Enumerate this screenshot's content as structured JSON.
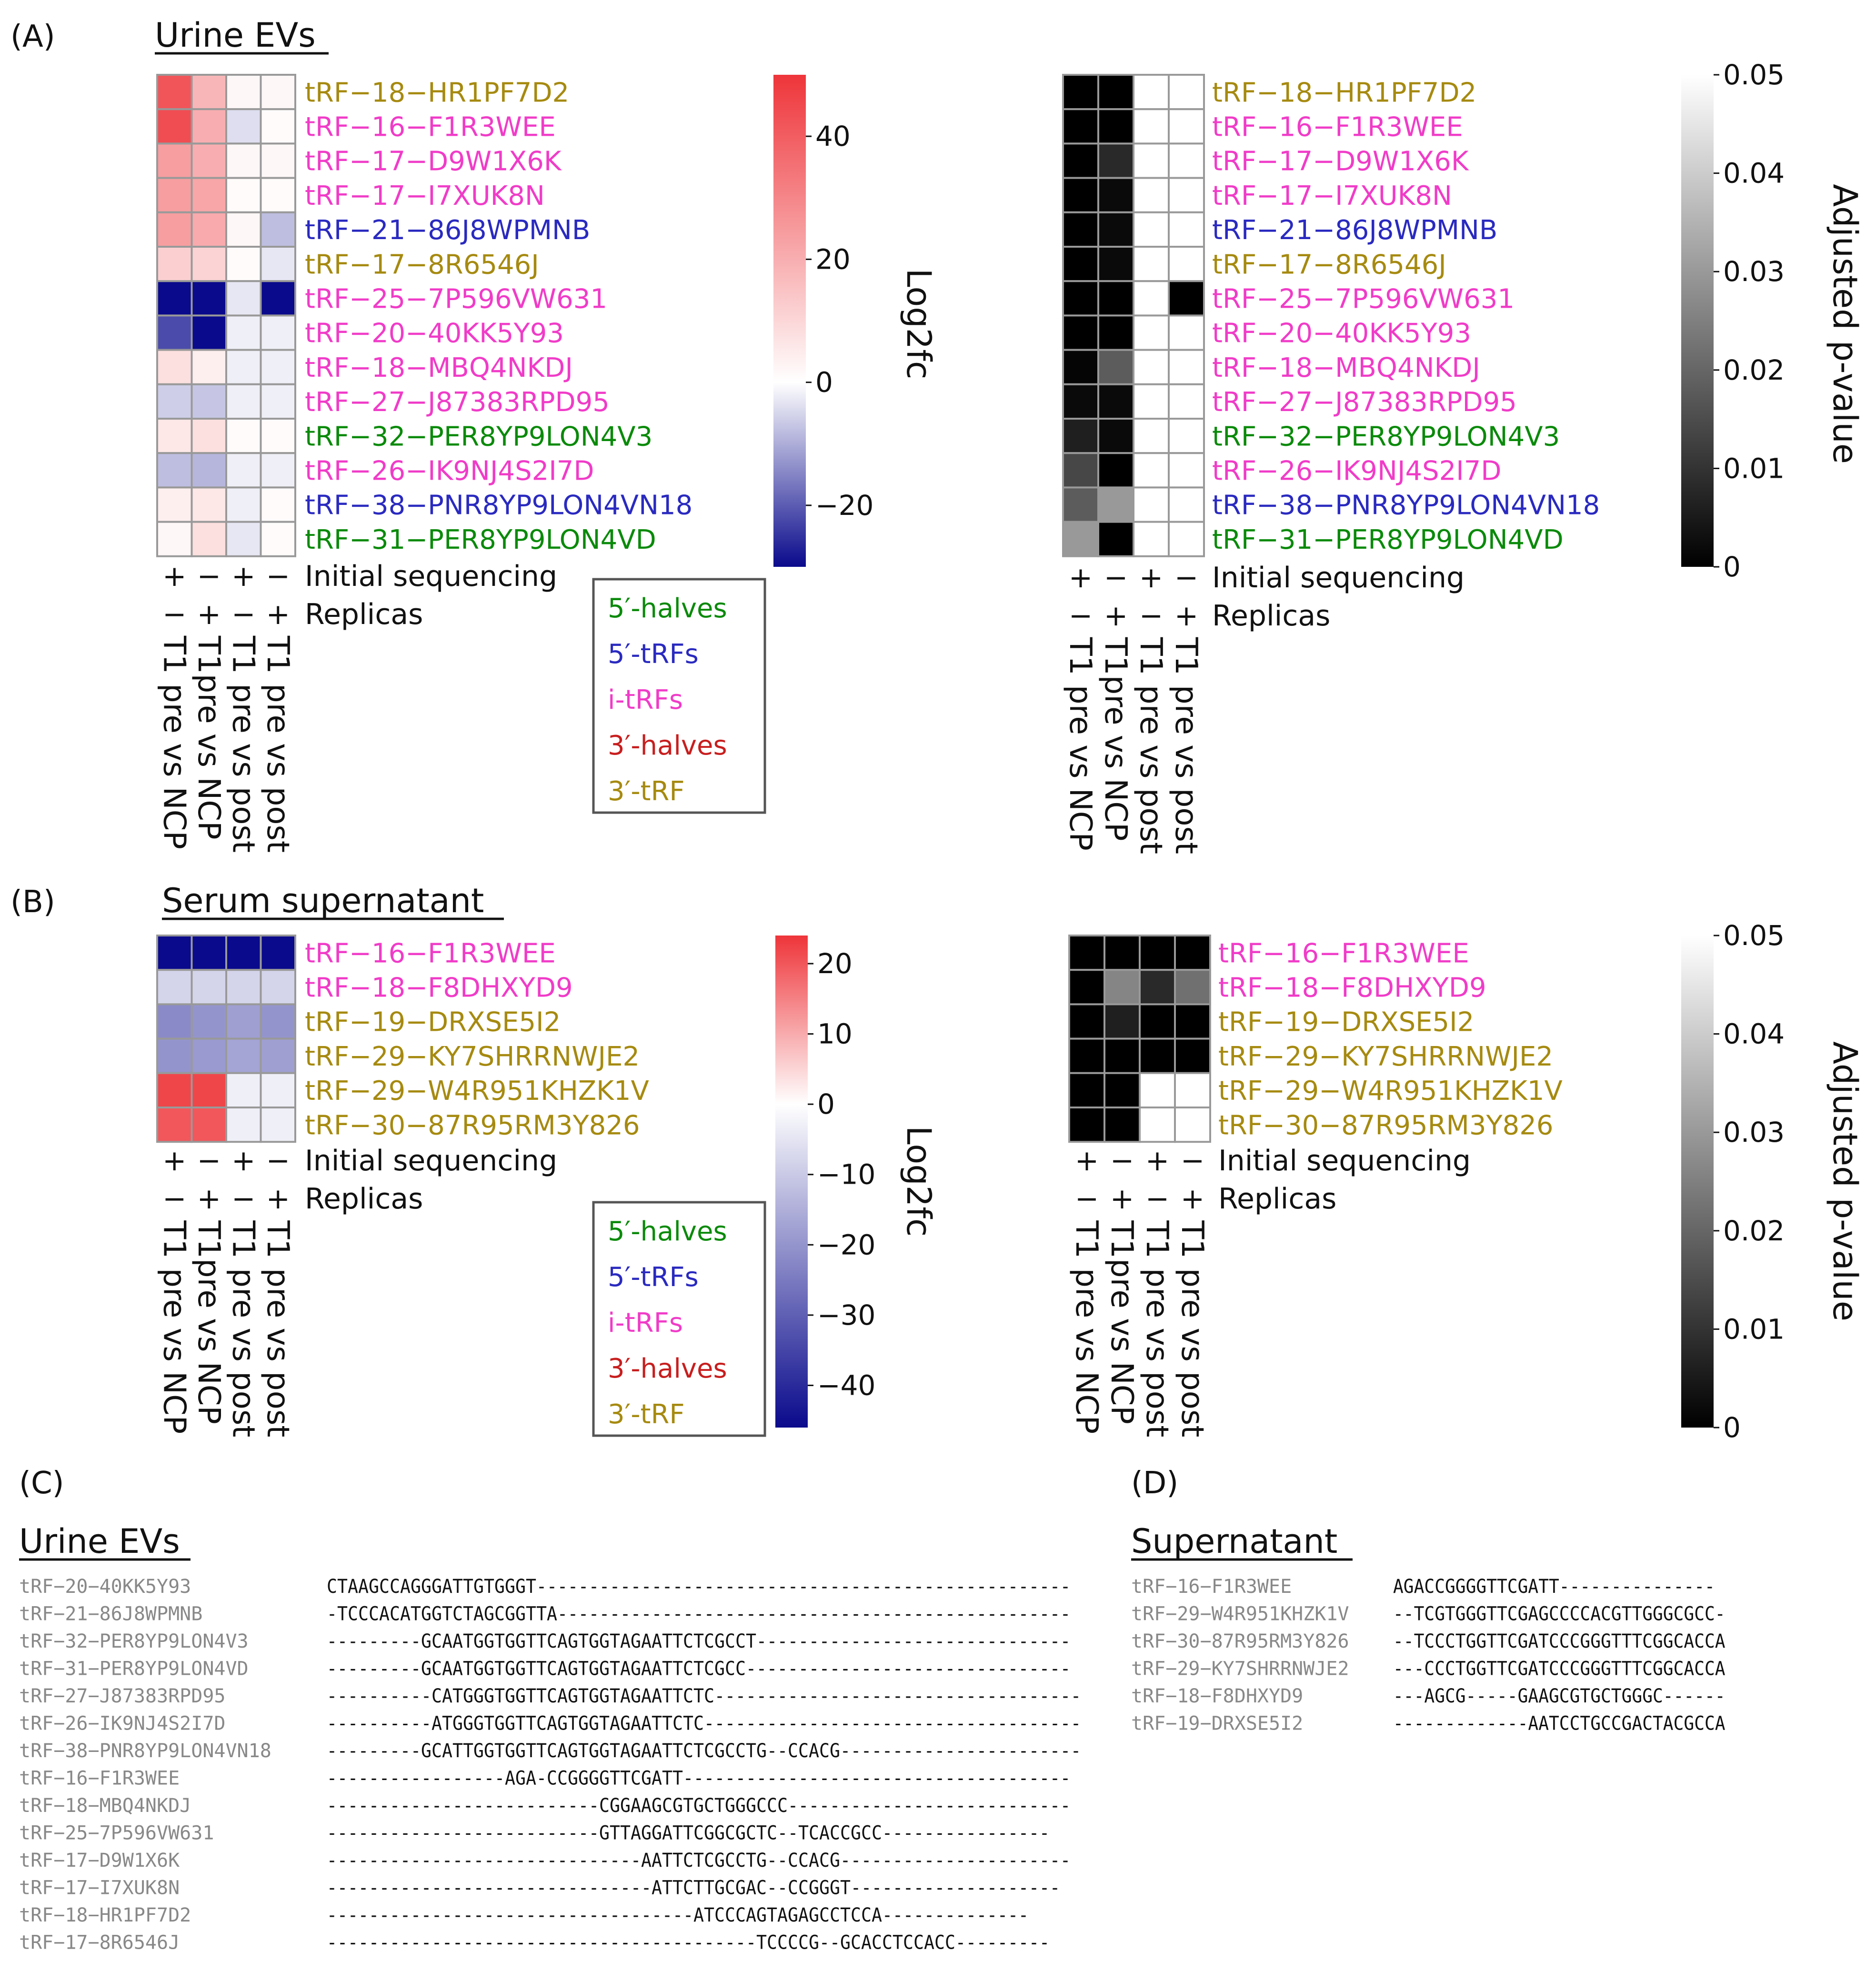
{
  "panel_letters": {
    "A": "(A)",
    "B": "(B)",
    "C": "(C)",
    "D": "(D)"
  },
  "panel_titles": {
    "A": "Urine EVs",
    "B": "Serum supernatant",
    "C": "Urine EVs",
    "D": "Supernatant"
  },
  "colors": {
    "5'-halves": "#0a8a0a",
    "5'-tRFs": "#2a2ac0",
    "i-tRFs": "#f03cc8",
    "3'-halves": "#c81e1e",
    "3'-tRF": "#a68a10",
    "grid": "#999999"
  },
  "legend_categories": [
    {
      "label": "5′-halves",
      "key": "5'-halves"
    },
    {
      "label": "5′-tRFs",
      "key": "5'-tRFs"
    },
    {
      "label": "i-tRFs",
      "key": "i-tRFs"
    },
    {
      "label": "3′-halves",
      "key": "3'-halves"
    },
    {
      "label": "3′-tRF",
      "key": "3'-tRF"
    }
  ],
  "design": {
    "row_labels": [
      "Initial sequencing",
      "Replicas"
    ],
    "initial_sequencing": [
      "+",
      "−",
      "+",
      "−"
    ],
    "replicas": [
      "−",
      "+",
      "−",
      "+"
    ],
    "comparisons": [
      "T1 pre vs NCP",
      "T1pre vs NCP",
      "T1 pre vs post",
      "T1 pre vs post"
    ]
  },
  "colorbars": {
    "log2fc_A": {
      "label": "Log2fc",
      "range": [
        -30,
        50
      ],
      "ticks": [
        40,
        20,
        0,
        -20
      ],
      "tick_labels": [
        "40",
        "20",
        "0",
        "−20"
      ]
    },
    "log2fc_B": {
      "label": "Log2fc",
      "range": [
        -46,
        24
      ],
      "ticks": [
        20,
        10,
        0,
        -10,
        -20,
        -30,
        -40
      ],
      "tick_labels": [
        "20",
        "10",
        "0",
        "−10",
        "−20",
        "−30",
        "−40"
      ]
    },
    "padj": {
      "label": "Adjusted p-value",
      "range": [
        0,
        0.05
      ],
      "ticks": [
        0.05,
        0.04,
        0.03,
        0.02,
        0.01,
        0
      ],
      "tick_labels": [
        "0.05",
        "0.04",
        "0.03",
        "0.02",
        "0.01",
        "0"
      ]
    }
  },
  "chart_data": [
    {
      "type": "heatmap",
      "id": "A_log2fc",
      "title": "Urine EVs",
      "rows": [
        "tRF−18−HR1PF7D2",
        "tRF−16−F1R3WEE",
        "tRF−17−D9W1X6K",
        "tRF−17−I7XUK8N",
        "tRF−21−86J8WPMNB",
        "tRF−17−8R6546J",
        "tRF−25−7P596VW631",
        "tRF−20−40KK5Y93",
        "tRF−18−MBQ4NKDJ",
        "tRF−27−J87383RPD95",
        "tRF−32−PER8YP9LON4V3",
        "tRF−26−IK9NJ4S2I7D",
        "tRF−38−PNR8YP9LON4VN18",
        "tRF−31−PER8YP9LON4VD"
      ],
      "row_types": [
        "3'-tRF",
        "i-tRFs",
        "i-tRFs",
        "i-tRFs",
        "5'-tRFs",
        "3'-tRF",
        "i-tRFs",
        "i-tRFs",
        "i-tRFs",
        "i-tRFs",
        "5'-halves",
        "i-tRFs",
        "5'-tRFs",
        "5'-halves"
      ],
      "columns": [
        "T1 pre vs NCP",
        "T1pre vs NCP",
        "T1 pre vs post",
        "T1 pre vs post"
      ],
      "colorbar_label": "Log2fc",
      "values": [
        [
          42,
          18,
          2,
          2
        ],
        [
          44,
          20,
          -4,
          1
        ],
        [
          24,
          20,
          2,
          2
        ],
        [
          24,
          22,
          1,
          1
        ],
        [
          24,
          21,
          2,
          -8
        ],
        [
          12,
          11,
          1,
          -3
        ],
        [
          -30,
          -30,
          -3,
          -30
        ],
        [
          -22,
          -30,
          -2,
          -2
        ],
        [
          8,
          4,
          -2,
          -2
        ],
        [
          -6,
          -7,
          -2,
          -2
        ],
        [
          6,
          8,
          1,
          1
        ],
        [
          -8,
          -9,
          -2,
          -2
        ],
        [
          4,
          6,
          -2,
          1
        ],
        [
          2,
          8,
          -3,
          1
        ]
      ]
    },
    {
      "type": "heatmap",
      "id": "A_padj",
      "title": "Urine EVs",
      "rows": [
        "tRF−18−HR1PF7D2",
        "tRF−16−F1R3WEE",
        "tRF−17−D9W1X6K",
        "tRF−17−I7XUK8N",
        "tRF−21−86J8WPMNB",
        "tRF−17−8R6546J",
        "tRF−25−7P596VW631",
        "tRF−20−40KK5Y93",
        "tRF−18−MBQ4NKDJ",
        "tRF−27−J87383RPD95",
        "tRF−32−PER8YP9LON4V3",
        "tRF−26−IK9NJ4S2I7D",
        "tRF−38−PNR8YP9LON4VN18",
        "tRF−31−PER8YP9LON4VD"
      ],
      "row_types": [
        "3'-tRF",
        "i-tRFs",
        "i-tRFs",
        "i-tRFs",
        "5'-tRFs",
        "3'-tRF",
        "i-tRFs",
        "i-tRFs",
        "i-tRFs",
        "i-tRFs",
        "5'-halves",
        "i-tRFs",
        "5'-tRFs",
        "5'-halves"
      ],
      "columns": [
        "T1 pre vs NCP",
        "T1pre vs NCP",
        "T1 pre vs post",
        "T1 pre vs post"
      ],
      "colorbar_label": "Adjusted p-value",
      "values": [
        [
          0,
          0,
          0.05,
          0.05
        ],
        [
          0,
          0,
          0.05,
          0.05
        ],
        [
          0,
          0.008,
          0.05,
          0.05
        ],
        [
          0,
          0.002,
          0.05,
          0.05
        ],
        [
          0,
          0.002,
          0.05,
          0.05
        ],
        [
          0,
          0.002,
          0.05,
          0.05
        ],
        [
          0,
          0,
          0.05,
          0
        ],
        [
          0,
          0,
          0.05,
          0.05
        ],
        [
          0.001,
          0.018,
          0.05,
          0.05
        ],
        [
          0.002,
          0.002,
          0.05,
          0.05
        ],
        [
          0.006,
          0.002,
          0.05,
          0.05
        ],
        [
          0.014,
          0,
          0.05,
          0.05
        ],
        [
          0.018,
          0.03,
          0.05,
          0.05
        ],
        [
          0.03,
          0,
          0.05,
          0.05
        ]
      ]
    },
    {
      "type": "heatmap",
      "id": "B_log2fc",
      "title": "Serum supernatant",
      "rows": [
        "tRF−16−F1R3WEE",
        "tRF−18−F8DHXYD9",
        "tRF−19−DRXSE5I2",
        "tRF−29−KY7SHRRNWJE2",
        "tRF−29−W4R951KHZK1V",
        "tRF−30−87R95RM3Y826"
      ],
      "row_types": [
        "i-tRFs",
        "i-tRFs",
        "3'-tRF",
        "3'-tRF",
        "3'-tRF",
        "3'-tRF"
      ],
      "columns": [
        "T1 pre vs NCP",
        "T1pre vs NCP",
        "T1 pre vs post",
        "T1 pre vs post"
      ],
      "colorbar_label": "Log2fc",
      "values": [
        [
          -46,
          -46,
          -46,
          -46
        ],
        [
          -8,
          -8,
          -8,
          -8
        ],
        [
          -22,
          -20,
          -18,
          -20
        ],
        [
          -20,
          -19,
          -17,
          -18
        ],
        [
          22,
          22,
          -3,
          -3
        ],
        [
          20,
          20,
          -3,
          -3
        ]
      ]
    },
    {
      "type": "heatmap",
      "id": "B_padj",
      "title": "Serum supernatant",
      "rows": [
        "tRF−16−F1R3WEE",
        "tRF−18−F8DHXYD9",
        "tRF−19−DRXSE5I2",
        "tRF−29−KY7SHRRNWJE2",
        "tRF−29−W4R951KHZK1V",
        "tRF−30−87R95RM3Y826"
      ],
      "row_types": [
        "i-tRFs",
        "i-tRFs",
        "3'-tRF",
        "3'-tRF",
        "3'-tRF",
        "3'-tRF"
      ],
      "columns": [
        "T1 pre vs NCP",
        "T1pre vs NCP",
        "T1 pre vs post",
        "T1 pre vs post"
      ],
      "colorbar_label": "Adjusted p-value",
      "values": [
        [
          0,
          0,
          0,
          0
        ],
        [
          0,
          0.026,
          0.008,
          0.022
        ],
        [
          0,
          0.006,
          0,
          0
        ],
        [
          0,
          0,
          0,
          0
        ],
        [
          0,
          0,
          0.05,
          0.05
        ],
        [
          0,
          0,
          0.05,
          0.05
        ]
      ]
    }
  ],
  "alignment_C": [
    {
      "name": "tRF−20−40KK5Y93",
      "seq": "CTAAGCCAGGGATTGTGGGT---------------------------------------------------"
    },
    {
      "name": "tRF−21−86J8WPMNB",
      "seq": "-TCCCACATGGTCTAGCGGTTA-------------------------------------------------"
    },
    {
      "name": "tRF−32−PER8YP9LON4V3",
      "seq": "---------GCAATGGTGGTTCAGTGGTAGAATTCTCGCCT------------------------------"
    },
    {
      "name": "tRF−31−PER8YP9LON4VD",
      "seq": "---------GCAATGGTGGTTCAGTGGTAGAATTCTCGCC-------------------------------"
    },
    {
      "name": "tRF−27−J87383RPD95",
      "seq": "----------CATGGGTGGTTCAGTGGTAGAATTCTC-----------------------------------"
    },
    {
      "name": "tRF−26−IK9NJ4S2I7D",
      "seq": "----------ATGGGTGGTTCAGTGGTAGAATTCTC------------------------------------"
    },
    {
      "name": "tRF−38−PNR8YP9LON4VN18",
      "seq": "---------GCATTGGTGGTTCAGTGGTAGAATTCTCGCCTG--CCACG-----------------------"
    },
    {
      "name": "tRF−16−F1R3WEE",
      "seq": "-----------------AGA-CCGGGGTTCGATT-------------------------------------"
    },
    {
      "name": "tRF−18−MBQ4NKDJ",
      "seq": "--------------------------CGGAAGCGTGCTGGGCCC---------------------------"
    },
    {
      "name": "tRF−25−7P596VW631",
      "seq": "--------------------------GTTAGGATTCGGCGCTC--TCACCGCC----------------"
    },
    {
      "name": "tRF−17−D9W1X6K",
      "seq": "------------------------------AATTCTCGCCTG--CCACG----------------------"
    },
    {
      "name": "tRF−17−I7XUK8N",
      "seq": "-------------------------------ATTCTTGCGAC--CCGGGT--------------------"
    },
    {
      "name": "tRF−18−HR1PF7D2",
      "seq": "-----------------------------------ATCCCAGTAGAGCCTCCA--------------"
    },
    {
      "name": "tRF−17−8R6546J",
      "seq": "-----------------------------------------TCCCCG--GCACCTCCACC---------"
    }
  ],
  "alignment_D": [
    {
      "name": "tRF−16−F1R3WEE",
      "seq": "AGACCGGGGTTCGATT---------------"
    },
    {
      "name": "tRF−29−W4R951KHZK1V",
      "seq": "--TCGTGGGTTCGAGCCCCACGTTGGGCGCC-"
    },
    {
      "name": "tRF−30−87R95RM3Y826",
      "seq": "--TCCCTGGTTCGATCCCGGGTTTCGGCACCA"
    },
    {
      "name": "tRF−29−KY7SHRRNWJE2",
      "seq": "---CCCTGGTTCGATCCCGGGTTTCGGCACCA"
    },
    {
      "name": "tRF−18−F8DHXYD9",
      "seq": "---AGCG-----GAAGCGTGCTGGGC------"
    },
    {
      "name": "tRF−19−DRXSE5I2",
      "seq": "-------------AATCCTGCCGACTACGCCA"
    }
  ]
}
